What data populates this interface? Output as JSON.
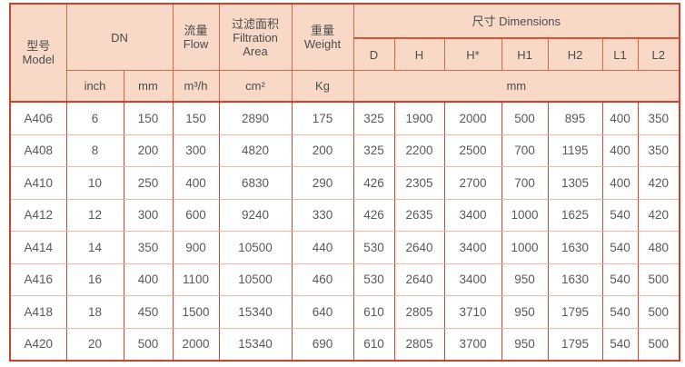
{
  "table": {
    "header": {
      "model_zh": "型号",
      "model_en": "Model",
      "dn_label": "DN",
      "flow_zh": "流量",
      "flow_en": "Flow",
      "filtration_zh": "过滤面积",
      "filtration_en_line1": "Filtration",
      "filtration_en_line2": "Area",
      "weight_zh": "重量",
      "weight_en": "Weight",
      "dimensions_label": "尺寸 Dimensions",
      "dim_cols": [
        "D",
        "H",
        "H*",
        "H1",
        "H2",
        "L1",
        "L2"
      ],
      "unit_inch": "inch",
      "unit_mm": "mm",
      "unit_flow": "m³/h",
      "unit_area": "cm²",
      "unit_weight": "Kg",
      "unit_dims": "mm"
    },
    "rows": [
      {
        "model": "A406",
        "inch": "6",
        "mm": "150",
        "flow": "150",
        "area": "2890",
        "weight": "175",
        "dims": [
          "325",
          "1900",
          "2000",
          "500",
          "895",
          "400",
          "350"
        ]
      },
      {
        "model": "A408",
        "inch": "8",
        "mm": "200",
        "flow": "300",
        "area": "4820",
        "weight": "200",
        "dims": [
          "325",
          "2200",
          "2500",
          "700",
          "1195",
          "400",
          "350"
        ]
      },
      {
        "model": "A410",
        "inch": "10",
        "mm": "250",
        "flow": "400",
        "area": "6830",
        "weight": "290",
        "dims": [
          "426",
          "2305",
          "2700",
          "700",
          "1305",
          "400",
          "420"
        ]
      },
      {
        "model": "A412",
        "inch": "12",
        "mm": "300",
        "flow": "600",
        "area": "9240",
        "weight": "330",
        "dims": [
          "426",
          "2635",
          "3400",
          "1000",
          "1625",
          "540",
          "420"
        ]
      },
      {
        "model": "A414",
        "inch": "14",
        "mm": "350",
        "flow": "900",
        "area": "10500",
        "weight": "440",
        "dims": [
          "530",
          "2640",
          "3400",
          "1000",
          "1630",
          "540",
          "480"
        ]
      },
      {
        "model": "A416",
        "inch": "16",
        "mm": "400",
        "flow": "1100",
        "area": "10500",
        "weight": "460",
        "dims": [
          "530",
          "2640",
          "3400",
          "950",
          "1630",
          "540",
          "500"
        ]
      },
      {
        "model": "A418",
        "inch": "18",
        "mm": "450",
        "flow": "1500",
        "area": "15340",
        "weight": "640",
        "dims": [
          "610",
          "2805",
          "3710",
          "950",
          "1795",
          "540",
          "500"
        ]
      },
      {
        "model": "A420",
        "inch": "20",
        "mm": "500",
        "flow": "2000",
        "area": "15340",
        "weight": "690",
        "dims": [
          "610",
          "2805",
          "3700",
          "950",
          "1795",
          "540",
          "500"
        ]
      }
    ],
    "colors": {
      "header_bg": "#f8d8c6",
      "border_outer": "#cf4128",
      "border_header": "#e2653f",
      "border_data_vertical": "#d8462e",
      "border_data_horizontal": "#f4b4a6",
      "text_header": "#4c4c4c",
      "text_data": "#595959"
    }
  }
}
